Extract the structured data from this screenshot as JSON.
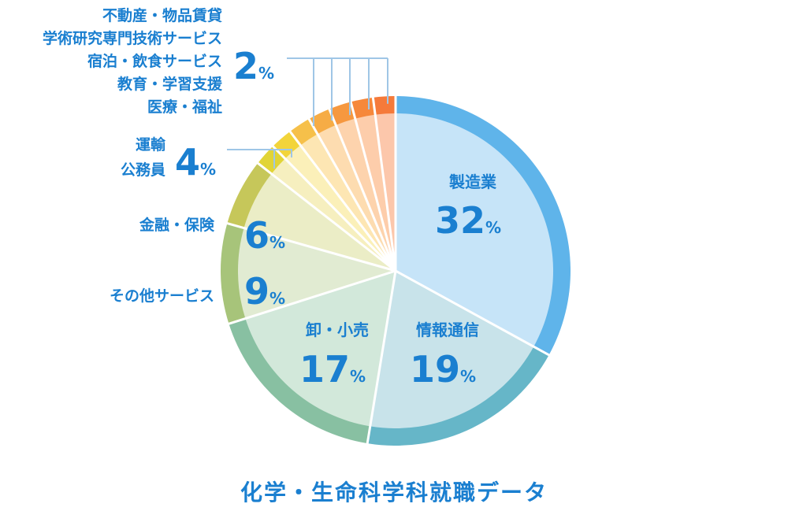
{
  "caption": "化学・生命科学科就職データ",
  "chart_data": {
    "type": "pie",
    "title": "化学・生命科学科就職データ",
    "unit": "%",
    "slices": [
      {
        "name": "製造業",
        "value": 32,
        "outer": "#5fb4ea",
        "inner": "#c6e4f8"
      },
      {
        "name": "情報通信",
        "value": 19,
        "outer": "#66b6c8",
        "inner": "#c8e3ea"
      },
      {
        "name": "卸・小売",
        "value": 17,
        "outer": "#88c0a2",
        "inner": "#d2e8da"
      },
      {
        "name": "その他サービス",
        "value": 9,
        "outer": "#a7c47a",
        "inner": "#e1ebd2"
      },
      {
        "name": "金融・保険",
        "value": 6,
        "outer": "#c6c75a",
        "inner": "#ebedc6"
      },
      {
        "name": "運輸",
        "value": 2,
        "outer": "#e1d436",
        "inner": "#f6efbf"
      },
      {
        "name": "公務員",
        "value": 2,
        "outer": "#f2d43a",
        "inner": "#fbf0b9"
      },
      {
        "name": "医療・福祉",
        "value": 2,
        "outer": "#f6c04a",
        "inner": "#fde6b3"
      },
      {
        "name": "教育・学習支援",
        "value": 2,
        "outer": "#f6ac45",
        "inner": "#fddcb0"
      },
      {
        "name": "宿泊・飲食サービス",
        "value": 2,
        "outer": "#f6983f",
        "inner": "#fdd3ad"
      },
      {
        "name": "学術研究専門技術サービス",
        "value": 2,
        "outer": "#f6883b",
        "inner": "#fdcdab"
      },
      {
        "name": "不動産・物品賃貸",
        "value": 2,
        "outer": "#f57a3a",
        "inner": "#fcc7ab"
      }
    ],
    "inside_labels": [
      {
        "name": "製造業",
        "value": "32",
        "unit": "%"
      },
      {
        "name": "情報通信",
        "value": "19",
        "unit": "%"
      },
      {
        "name": "卸・小売",
        "value": "17",
        "unit": "%"
      },
      {
        "name": "",
        "value": "9",
        "unit": "%"
      },
      {
        "name": "",
        "value": "6",
        "unit": "%"
      }
    ],
    "outside_labels": [
      {
        "lines": [
          "その他サービス"
        ],
        "value": "",
        "unit": ""
      },
      {
        "lines": [
          "金融・保険"
        ],
        "value": "",
        "unit": ""
      },
      {
        "lines": [
          "運輸",
          "公務員"
        ],
        "value": "4",
        "unit": "%"
      },
      {
        "lines": [
          "不動産・物品賃貸",
          "学術研究専門技術サービス",
          "宿泊・飲食サービス",
          "教育・学習支援",
          "医療・福祉"
        ],
        "value": "2",
        "unit": "%"
      }
    ]
  }
}
